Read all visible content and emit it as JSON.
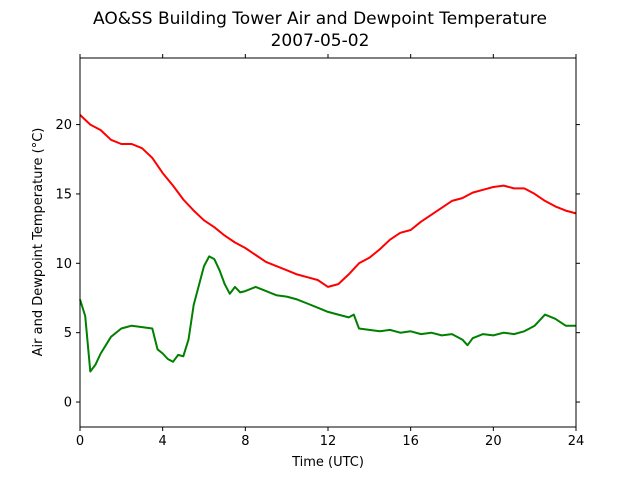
{
  "chart_data": {
    "type": "line",
    "title": "AO&SS Building Tower Air and Dewpoint Temperature",
    "subtitle": "2007-05-02",
    "xlabel": "Time (UTC)",
    "ylabel": "Air and Dewpoint Temperature (°C)",
    "xlim": [
      0,
      24
    ],
    "ylim": [
      -1.8,
      24.8
    ],
    "xticks": [
      0,
      4,
      8,
      12,
      16,
      20,
      24
    ],
    "yticks": [
      0,
      5,
      10,
      15,
      20
    ],
    "grid": false,
    "legend": "none",
    "series": [
      {
        "color": "#ff0000",
        "x": [
          0,
          0.5,
          1,
          1.5,
          2,
          2.5,
          3,
          3.5,
          4,
          4.5,
          5,
          5.5,
          6,
          6.5,
          7,
          7.5,
          8,
          8.5,
          9,
          9.5,
          10,
          10.5,
          11,
          11.5,
          12,
          12.5,
          13,
          13.5,
          14,
          14.5,
          15,
          15.5,
          16,
          16.5,
          17,
          17.5,
          18,
          18.5,
          19,
          19.5,
          20,
          20.5,
          21,
          21.5,
          22,
          22.5,
          23,
          23.5,
          24
        ],
        "y": [
          20.7,
          20.0,
          19.6,
          18.9,
          18.6,
          18.6,
          18.3,
          17.6,
          16.5,
          15.6,
          14.6,
          13.8,
          13.1,
          12.6,
          12.0,
          11.5,
          11.1,
          10.6,
          10.1,
          9.8,
          9.5,
          9.2,
          9.0,
          8.8,
          8.3,
          8.5,
          9.2,
          10.0,
          10.4,
          11.0,
          11.7,
          12.2,
          12.4,
          13.0,
          13.5,
          14.0,
          14.5,
          14.7,
          15.1,
          15.3,
          15.5,
          15.6,
          15.4,
          15.4,
          15.0,
          14.5,
          14.1,
          13.8,
          13.6
        ]
      },
      {
        "color": "#008000",
        "x": [
          0,
          0.25,
          0.5,
          0.75,
          1,
          1.5,
          2,
          2.5,
          3,
          3.5,
          3.75,
          4,
          4.25,
          4.5,
          4.75,
          5,
          5.25,
          5.5,
          6,
          6.25,
          6.5,
          6.75,
          7,
          7.25,
          7.5,
          7.75,
          8,
          8.5,
          9,
          9.5,
          10,
          10.5,
          11,
          11.5,
          12,
          12.5,
          13,
          13.25,
          13.5,
          14,
          14.5,
          15,
          15.5,
          16,
          16.5,
          17,
          17.5,
          18,
          18.5,
          18.75,
          19,
          19.5,
          20,
          20.5,
          21,
          21.5,
          22,
          22.5,
          23,
          23.5,
          24
        ],
        "y": [
          7.4,
          6.2,
          2.2,
          2.7,
          3.5,
          4.7,
          5.3,
          5.5,
          5.4,
          5.3,
          3.8,
          3.5,
          3.1,
          2.9,
          3.4,
          3.3,
          4.5,
          7.0,
          9.8,
          10.5,
          10.3,
          9.5,
          8.5,
          7.8,
          8.3,
          7.9,
          8.0,
          8.3,
          8.0,
          7.7,
          7.6,
          7.4,
          7.1,
          6.8,
          6.5,
          6.3,
          6.1,
          6.3,
          5.3,
          5.2,
          5.1,
          5.2,
          5.0,
          5.1,
          4.9,
          5.0,
          4.8,
          4.9,
          4.5,
          4.1,
          4.6,
          4.9,
          4.8,
          5.0,
          4.9,
          5.1,
          5.5,
          6.3,
          6.0,
          5.5,
          5.5
        ]
      }
    ]
  }
}
